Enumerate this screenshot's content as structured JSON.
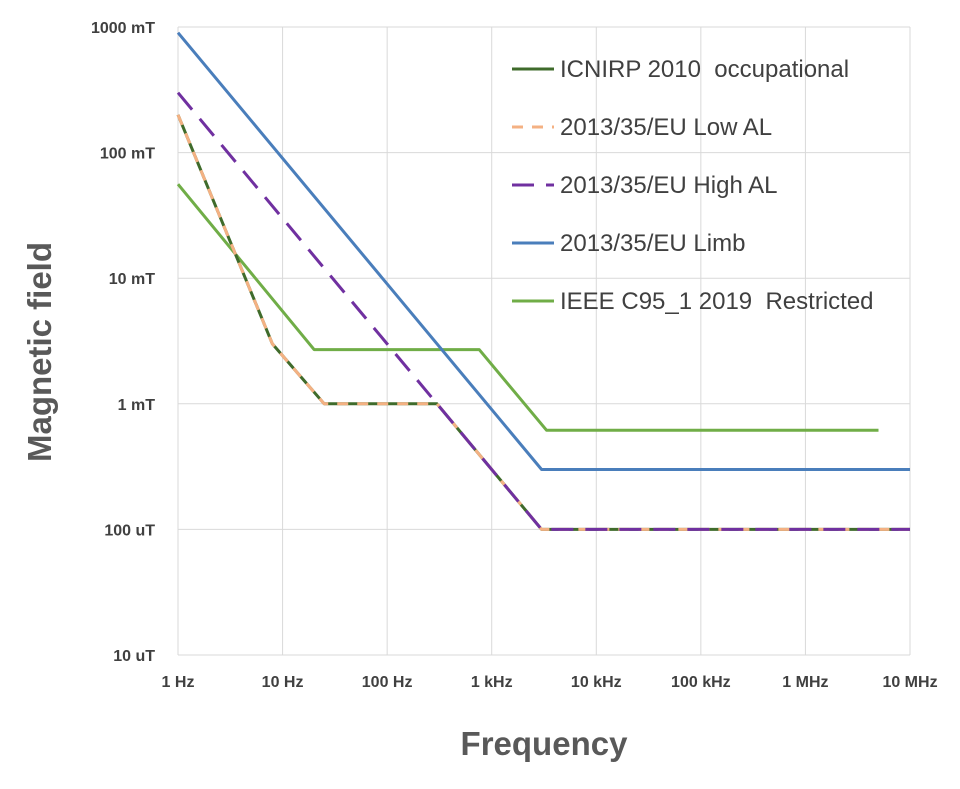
{
  "chart_data": {
    "type": "line",
    "title": "",
    "xlabel": "Frequency",
    "ylabel": "Magnetic field",
    "x_scale": "log",
    "y_scale": "log",
    "x_unit": "Hz",
    "y_unit": "T",
    "xlim": [
      1,
      10000000
    ],
    "ylim": [
      1e-05,
      1
    ],
    "grid": true,
    "legend_position": "top-right",
    "x_ticks": [
      {
        "value": 1,
        "label": "1 Hz"
      },
      {
        "value": 10,
        "label": "10 Hz"
      },
      {
        "value": 100,
        "label": "100 Hz"
      },
      {
        "value": 1000,
        "label": "1 kHz"
      },
      {
        "value": 10000,
        "label": "10 kHz"
      },
      {
        "value": 100000,
        "label": "100 kHz"
      },
      {
        "value": 1000000,
        "label": "1 MHz"
      },
      {
        "value": 10000000,
        "label": "10 MHz"
      }
    ],
    "y_ticks": [
      {
        "value": 1e-05,
        "label": "10 uT"
      },
      {
        "value": 0.0001,
        "label": "100 uT"
      },
      {
        "value": 0.001,
        "label": "1 mT"
      },
      {
        "value": 0.01,
        "label": "10 mT"
      },
      {
        "value": 0.1,
        "label": "100 mT"
      },
      {
        "value": 1,
        "label": "1000 mT"
      }
    ],
    "series": [
      {
        "name": "IEEE C95_1 2019  Restricted",
        "color": "#70ad47",
        "dash": "solid",
        "points": [
          [
            1,
            0.056
          ],
          [
            20,
            0.0027
          ],
          [
            759,
            0.0027
          ],
          [
            3350,
            0.000615
          ],
          [
            5000000,
            0.000615
          ]
        ]
      },
      {
        "name": "2013/35/EU Limb",
        "color": "#4a7ebb",
        "dash": "solid",
        "points": [
          [
            1,
            0.9
          ],
          [
            3000,
            0.0003
          ],
          [
            10000000,
            0.0003
          ]
        ]
      },
      {
        "name": "ICNIRP 2010  occupational",
        "color": "#3f6b2b",
        "dash": "solid",
        "points": [
          [
            1,
            0.2
          ],
          [
            8,
            0.003
          ],
          [
            25,
            0.001
          ],
          [
            300,
            0.001
          ],
          [
            3000,
            0.0001
          ],
          [
            10000000,
            0.0001
          ]
        ]
      },
      {
        "name": "2013/35/EU Low AL",
        "color": "#f4b183",
        "dash": "dashed",
        "points": [
          [
            1,
            0.2
          ],
          [
            8,
            0.003
          ],
          [
            25,
            0.001
          ],
          [
            300,
            0.001
          ],
          [
            3000,
            0.0001
          ],
          [
            10000000,
            0.0001
          ]
        ]
      },
      {
        "name": "2013/35/EU High AL",
        "color": "#7030a0",
        "dash": "longdash",
        "points": [
          [
            1,
            0.3
          ],
          [
            3000,
            0.0001
          ],
          [
            10000000,
            0.0001
          ]
        ]
      }
    ],
    "legend_order": [
      "ICNIRP 2010  occupational",
      "2013/35/EU Low AL",
      "2013/35/EU High AL",
      "2013/35/EU Limb",
      "IEEE C95_1 2019  Restricted"
    ]
  }
}
